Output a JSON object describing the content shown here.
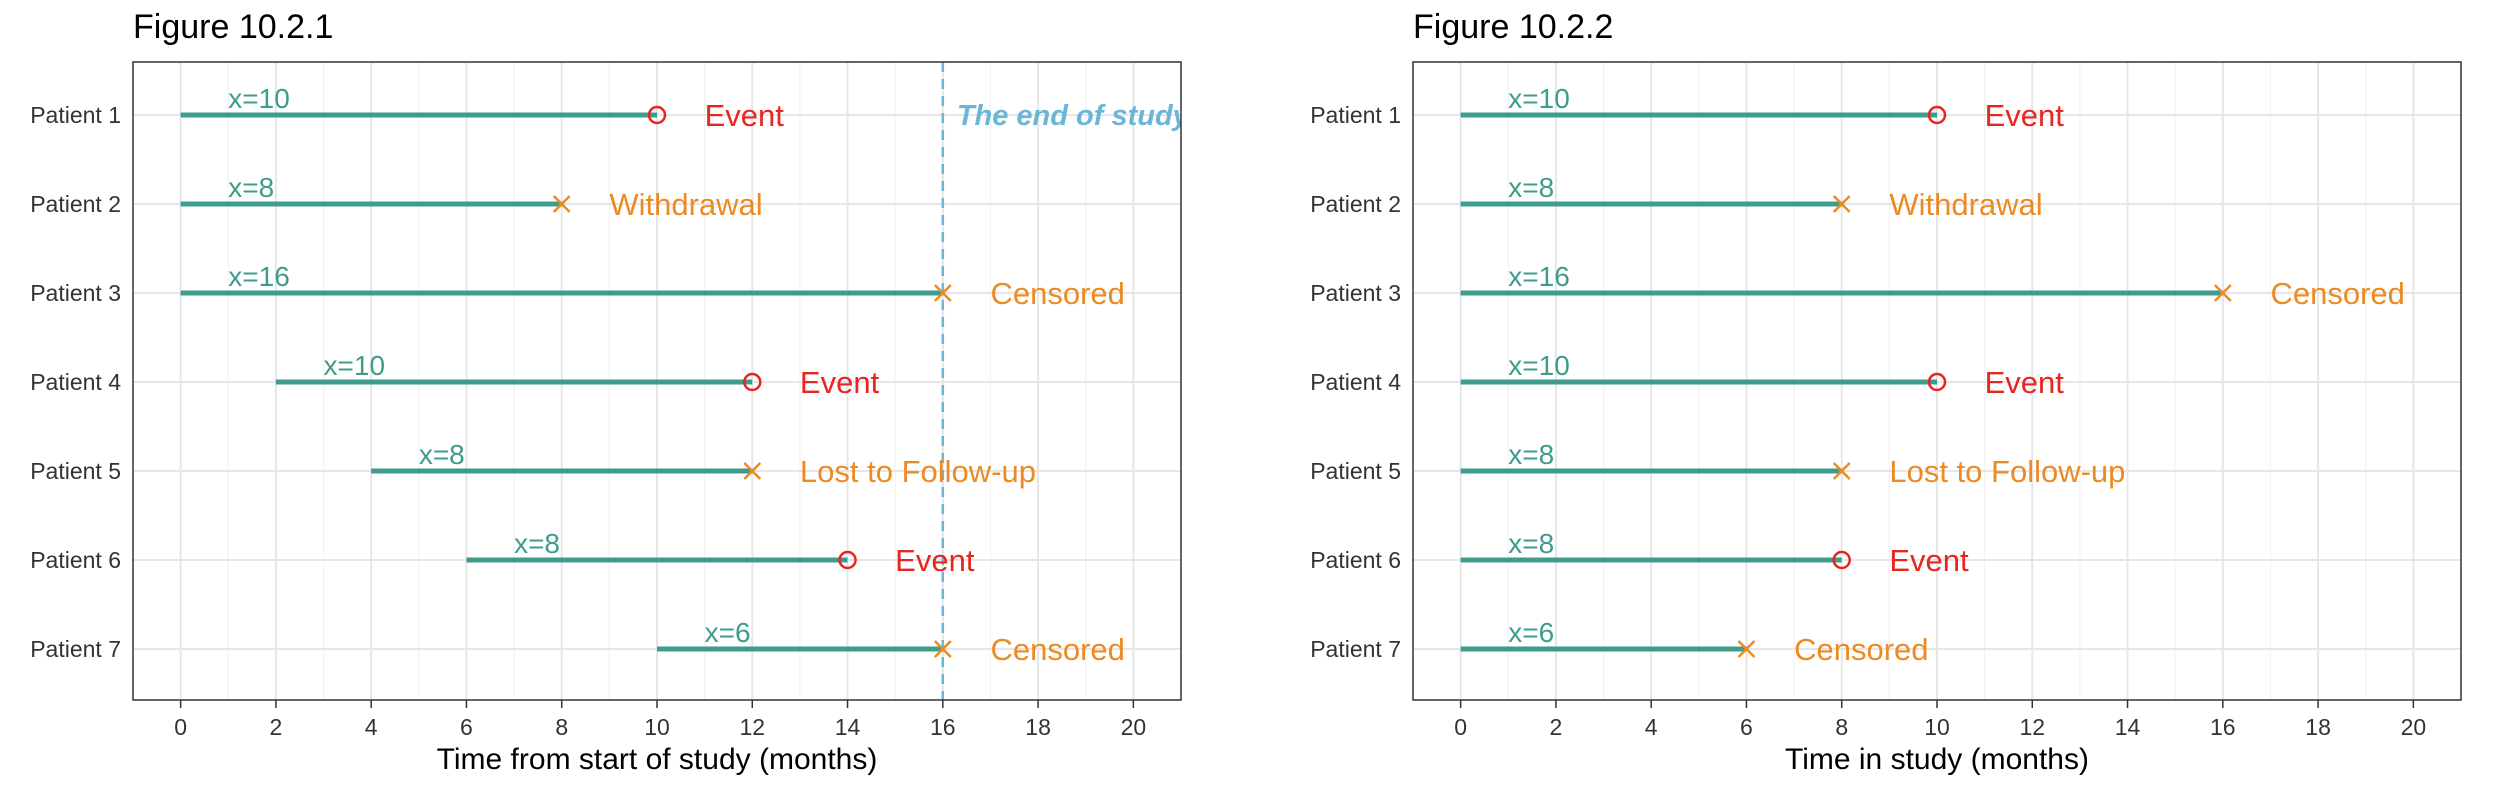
{
  "colors": {
    "segment": "#3f9c8c",
    "event": "#e8251f",
    "censor": "#ec8a23",
    "end_line": "#6bb6d6",
    "grid_major": "#e6e6e6",
    "grid_minor": "#f2f2f2",
    "axis_text": "#333333"
  },
  "chart_data": [
    {
      "type": "timeline",
      "title": "Figure 10.2.1",
      "xlabel": "Time from start of study (months)",
      "ylabel": "",
      "xlim": [
        -1,
        21
      ],
      "xticks": [
        0,
        2,
        4,
        6,
        8,
        10,
        12,
        14,
        16,
        18,
        20
      ],
      "grid": true,
      "end_of_study": {
        "x": 16,
        "label": "The end of study"
      },
      "patients": [
        {
          "label": "Patient 1",
          "start": 0,
          "end": 10,
          "duration_label": "x=10",
          "outcome": "Event",
          "marker": "circle"
        },
        {
          "label": "Patient 2",
          "start": 0,
          "end": 8,
          "duration_label": "x=8",
          "outcome": "Withdrawal",
          "marker": "cross"
        },
        {
          "label": "Patient 3",
          "start": 0,
          "end": 16,
          "duration_label": "x=16",
          "outcome": "Censored",
          "marker": "cross"
        },
        {
          "label": "Patient 4",
          "start": 2,
          "end": 12,
          "duration_label": "x=10",
          "outcome": "Event",
          "marker": "circle"
        },
        {
          "label": "Patient 5",
          "start": 4,
          "end": 12,
          "duration_label": "x=8",
          "outcome": "Lost to Follow-up",
          "marker": "cross"
        },
        {
          "label": "Patient 6",
          "start": 6,
          "end": 14,
          "duration_label": "x=8",
          "outcome": "Event",
          "marker": "circle"
        },
        {
          "label": "Patient 7",
          "start": 10,
          "end": 16,
          "duration_label": "x=6",
          "outcome": "Censored",
          "marker": "cross"
        }
      ]
    },
    {
      "type": "timeline",
      "title": "Figure 10.2.2",
      "xlabel": "Time in study (months)",
      "ylabel": "",
      "xlim": [
        -1,
        21
      ],
      "xticks": [
        0,
        2,
        4,
        6,
        8,
        10,
        12,
        14,
        16,
        18,
        20
      ],
      "grid": true,
      "patients": [
        {
          "label": "Patient 1",
          "start": 0,
          "end": 10,
          "duration_label": "x=10",
          "outcome": "Event",
          "marker": "circle"
        },
        {
          "label": "Patient 2",
          "start": 0,
          "end": 8,
          "duration_label": "x=8",
          "outcome": "Withdrawal",
          "marker": "cross"
        },
        {
          "label": "Patient 3",
          "start": 0,
          "end": 16,
          "duration_label": "x=16",
          "outcome": "Censored",
          "marker": "cross"
        },
        {
          "label": "Patient 4",
          "start": 0,
          "end": 10,
          "duration_label": "x=10",
          "outcome": "Event",
          "marker": "circle"
        },
        {
          "label": "Patient 5",
          "start": 0,
          "end": 8,
          "duration_label": "x=8",
          "outcome": "Lost to Follow-up",
          "marker": "cross"
        },
        {
          "label": "Patient 6",
          "start": 0,
          "end": 8,
          "duration_label": "x=8",
          "outcome": "Event",
          "marker": "circle"
        },
        {
          "label": "Patient 7",
          "start": 0,
          "end": 6,
          "duration_label": "x=6",
          "outcome": "Censored",
          "marker": "cross"
        }
      ]
    }
  ]
}
